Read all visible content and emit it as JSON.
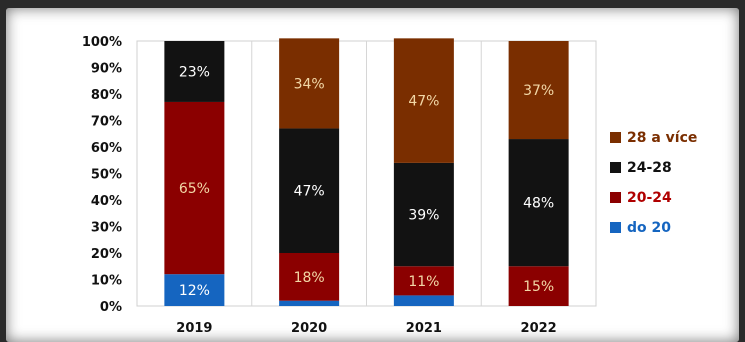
{
  "chart_data": {
    "type": "bar",
    "stacked": true,
    "percent": true,
    "categories": [
      "2019",
      "2020",
      "2021",
      "2022"
    ],
    "ylim": [
      0,
      100
    ],
    "yticks": [
      "0%",
      "10%",
      "20%",
      "30%",
      "40%",
      "50%",
      "60%",
      "70%",
      "80%",
      "90%",
      "100%"
    ],
    "grid": false,
    "legend_position": "right",
    "series": [
      {
        "name": "do 20",
        "color": "#1565c0",
        "values": [
          12,
          2,
          4,
          0
        ],
        "labels": [
          "12%",
          "",
          "",
          ""
        ]
      },
      {
        "name": "20-24",
        "color": "#8b0000",
        "values": [
          65,
          18,
          11,
          15
        ],
        "labels": [
          "65%",
          "18%",
          "11%",
          "15%"
        ]
      },
      {
        "name": "24-28",
        "color": "#121212",
        "values": [
          23,
          47,
          39,
          48
        ],
        "labels": [
          "23%",
          "47%",
          "39%",
          "48%"
        ]
      },
      {
        "name": "28 a více",
        "color": "#7a2e00",
        "values": [
          0,
          34,
          47,
          37
        ],
        "labels": [
          "",
          "34%",
          "47%",
          "37%"
        ]
      }
    ],
    "label_colors": {
      "do 20": "#ffffff",
      "20-24": "#f2d7a6",
      "24-28": "#ffffff",
      "28 a více": "#f2d7a6"
    },
    "legend_text_colors": {
      "28 a více": "#7a2e00",
      "24-28": "#111111",
      "20-24": "#b00000",
      "do 20": "#1565c0"
    }
  }
}
